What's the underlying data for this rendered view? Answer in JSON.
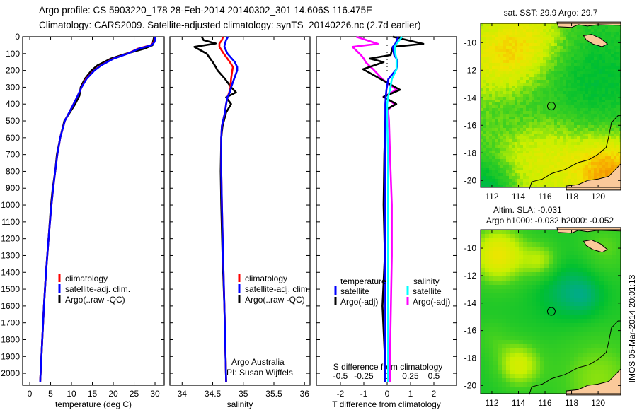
{
  "header": {
    "title_line1": "Argo profile: CS 5903220_178 28-Feb-2014 20140302_301 14.606S 116.475E",
    "title_line2": "Climatology: CARS2009. Satellite-adjusted climatology: synTS_20140226.nc (2.7d earlier)"
  },
  "footer": {
    "stamp": "IMOS 05-Mar-2014 20:01:13"
  },
  "chart_data": [
    {
      "type": "line",
      "xlabel": "temperature (deg C)",
      "xlim": [
        -1.7,
        32.2
      ],
      "ylim": [
        0,
        2071
      ],
      "y_inverted": true,
      "xticks": [
        0,
        5,
        10,
        15,
        20,
        25,
        30
      ],
      "xtick_labels": [
        "0",
        "5",
        "10",
        "15",
        "20",
        "25",
        "30"
      ],
      "yticks": [
        0,
        100,
        200,
        300,
        400,
        500,
        600,
        700,
        800,
        900,
        1000,
        1100,
        1200,
        1300,
        1400,
        1500,
        1600,
        1700,
        1800,
        1900,
        2000
      ],
      "ytick_labels": [
        "0",
        "100",
        "200",
        "300",
        "400",
        "500",
        "600",
        "700",
        "800",
        "900",
        "1000",
        "1100",
        "1200",
        "1300",
        "1400",
        "1500",
        "1600",
        "1700",
        "1800",
        "1900",
        "2000"
      ],
      "depth": [
        0,
        30,
        50,
        70,
        100,
        130,
        170,
        200,
        250,
        300,
        350,
        400,
        500,
        600,
        700,
        800,
        900,
        1000,
        1200,
        1400,
        1600,
        1800,
        2000,
        2050
      ],
      "series": [
        {
          "name": "climatology",
          "color": "#ff0000",
          "values": [
            29.9,
            29.8,
            29,
            26,
            23.4,
            20,
            17,
            15.4,
            13.5,
            12.4,
            11.5,
            10.5,
            8.4,
            7.3,
            6.6,
            6.1,
            5.6,
            5.2,
            4.5,
            3.9,
            3.4,
            3.0,
            2.6,
            2.5
          ]
        },
        {
          "name": "satellite-adj. clim.",
          "color": "#0000ff",
          "values": [
            30.1,
            29.9,
            29.2,
            26.2,
            23.5,
            20.1,
            17.1,
            15.5,
            13.6,
            12.4,
            11.5,
            10.5,
            8.4,
            7.3,
            6.6,
            6.1,
            5.6,
            5.2,
            4.5,
            3.9,
            3.4,
            3.0,
            2.6,
            2.5
          ]
        },
        {
          "name": "Argo(..raw -QC)",
          "color": "#000000",
          "values": [
            29.8,
            29.5,
            29.4,
            27.5,
            23.2,
            19.4,
            16.2,
            14.8,
            13.2,
            12.2,
            11.9,
            10.9,
            8.3,
            7.3,
            6.5,
            6.1,
            5.5,
            5.1,
            4.5,
            3.9,
            3.4,
            3.0,
            2.6,
            2.5
          ]
        }
      ],
      "draw_order": [
        2,
        0,
        1
      ]
    },
    {
      "type": "line",
      "xlabel": "salinity",
      "xlim": [
        33.8,
        36.09
      ],
      "ylim": [
        0,
        2071
      ],
      "y_inverted": true,
      "xticks": [
        34,
        34.5,
        35,
        35.5,
        36
      ],
      "xtick_labels": [
        "34",
        "34.5",
        "35",
        "35.5",
        "36"
      ],
      "depth": [
        0,
        20,
        40,
        60,
        100,
        150,
        180,
        200,
        250,
        300,
        330,
        360,
        400,
        450,
        530,
        600,
        800,
        1000,
        1300,
        1600,
        1900,
        2050
      ],
      "series": [
        {
          "name": "climatology",
          "color": "#ff0000",
          "values": [
            34.67,
            34.65,
            34.61,
            34.61,
            34.68,
            34.78,
            34.83,
            34.82,
            34.8,
            34.79,
            34.77,
            34.74,
            34.72,
            34.7,
            34.65,
            34.64,
            34.64,
            34.65,
            34.67,
            34.69,
            34.71,
            34.72
          ]
        },
        {
          "name": "satellite-adj. clim.",
          "color": "#0000ff",
          "values": [
            34.75,
            34.72,
            34.7,
            34.69,
            34.74,
            34.86,
            34.9,
            34.9,
            34.85,
            34.8,
            34.78,
            34.74,
            34.72,
            34.7,
            34.65,
            34.64,
            34.64,
            34.65,
            34.67,
            34.69,
            34.71,
            34.72
          ]
        },
        {
          "name": "Argo(..raw -QC)",
          "color": "#000000",
          "values": [
            34.32,
            34.35,
            34.55,
            34.2,
            34.4,
            34.5,
            34.55,
            34.58,
            34.7,
            34.8,
            34.88,
            34.72,
            34.8,
            34.72,
            34.66,
            34.64,
            34.63,
            34.64,
            34.66,
            34.69,
            34.71,
            34.72
          ]
        }
      ],
      "draw_order": [
        2,
        0,
        1
      ],
      "annotation": [
        "Argo Australia",
        "PI: Susan Wijffels"
      ]
    },
    {
      "type": "line",
      "xlabel": "T difference from climatology",
      "xlabel2": "S difference from climatology",
      "xlim": [
        -3.03,
        2.97
      ],
      "xlim2": [
        -0.7575,
        0.7425
      ],
      "ylim": [
        0,
        2071
      ],
      "y_inverted": true,
      "xticks": [
        -2,
        -1,
        0,
        1,
        2
      ],
      "xtick_labels": [
        "-2",
        "-1",
        "0",
        "1",
        "2"
      ],
      "xticks2": [
        -0.5,
        -0.25,
        0,
        0.25,
        0.5
      ],
      "xtick2_labels": [
        "-0.5",
        "-0.25",
        "0",
        "0.25",
        "0.5"
      ],
      "depth": [
        0,
        42,
        60,
        109,
        130,
        151,
        193,
        252,
        315,
        357,
        400,
        433,
        500,
        700,
        1000,
        1300,
        1600,
        1900,
        2050
      ],
      "legend_headers": [
        "temperature",
        "salinity"
      ],
      "series": [
        {
          "name": "satellite",
          "group": "temperature",
          "axis": "T",
          "color": "#0000ff",
          "values": [
            0.48,
            0.35,
            0.24,
            0.3,
            0.4,
            0.45,
            0.4,
            0.05,
            -0.03,
            -0.06,
            -0.08,
            -0.08,
            -0.08,
            -0.08,
            -0.08,
            -0.08,
            -0.08,
            -0.08,
            -0.08
          ]
        },
        {
          "name": "Argo(-adj)",
          "group": "temperature",
          "axis": "T",
          "color": "#000000",
          "values": [
            0.24,
            1.55,
            0.24,
            0.15,
            -0.75,
            -0.15,
            -1.03,
            -0.27,
            0.55,
            -0.15,
            0.39,
            -0.06,
            -0.08,
            -0.12,
            -0.15,
            -0.1,
            -0.2,
            -0.1,
            -0.1
          ]
        },
        {
          "name": "satellite",
          "group": "salinity",
          "axis": "S",
          "color": "#00ffff",
          "values": [
            0.16,
            0.1,
            0.08,
            0.09,
            0.1,
            0.1,
            0.1,
            0.05,
            0.03,
            0.01,
            0,
            0,
            0,
            0.01,
            0.01,
            0.01,
            0.01,
            0.01,
            0.01
          ]
        },
        {
          "name": "Argo(-adj)",
          "group": "salinity",
          "axis": "S",
          "color": "#ff00ff",
          "values": [
            -0.33,
            -0.1,
            -0.37,
            -0.28,
            -0.25,
            -0.23,
            -0.15,
            -0.05,
            0.1,
            -0.04,
            0.08,
            0.01,
            0.02,
            0.03,
            0.05,
            0.05,
            0.04,
            0.03,
            0.03
          ]
        }
      ],
      "draw_order": [
        3,
        1,
        0,
        2
      ]
    },
    {
      "type": "heatmap",
      "title": "sat. SST: 29.9  Argo: 29.7",
      "xlim": [
        111.15,
        121.7
      ],
      "ylim": [
        -20.5,
        -8.6
      ],
      "xticks": [
        112,
        114,
        116,
        118,
        120
      ],
      "xtick_labels": [
        "112",
        "114",
        "116",
        "118",
        "120"
      ],
      "yticks": [
        -10,
        -12,
        -14,
        -16,
        -18,
        -20
      ],
      "ytick_labels": [
        "-10",
        "-12",
        "-14",
        "-16",
        "-18",
        "-20"
      ],
      "argo_position": [
        116.475,
        -14.606
      ],
      "field": "sst"
    },
    {
      "type": "heatmap",
      "title": "Altim. SLA: -0.031",
      "subtitle": "Argo h1000: -0.032 h2000: -0.052",
      "xlim": [
        111.15,
        121.7
      ],
      "ylim": [
        -20.6,
        -8.66
      ],
      "xticks": [
        112,
        114,
        116,
        118,
        120
      ],
      "xtick_labels": [
        "112",
        "114",
        "116",
        "118",
        "120"
      ],
      "yticks": [
        -10,
        -12,
        -14,
        -16,
        -18,
        -20
      ],
      "ytick_labels": [
        "-10",
        "-12",
        "-14",
        "-16",
        "-18",
        "-20"
      ],
      "argo_position": [
        116.475,
        -14.606
      ],
      "field": "sla"
    }
  ],
  "geo": {
    "land_color": "#fac99a",
    "land": [
      [
        [
          118.9,
          -9.5
        ],
        [
          119.5,
          -9.4
        ],
        [
          120.2,
          -9.7
        ],
        [
          120.7,
          -10.1
        ],
        [
          120.3,
          -10.3
        ],
        [
          119.6,
          -10.1
        ],
        [
          119.1,
          -9.8
        ]
      ],
      [
        [
          116.9,
          -8.5
        ],
        [
          117.0,
          -8.85
        ],
        [
          118.0,
          -8.9
        ],
        [
          118.5,
          -8.7
        ],
        [
          119.2,
          -8.8
        ],
        [
          120.0,
          -8.7
        ],
        [
          121.7,
          -8.75
        ],
        [
          121.7,
          -8.5
        ]
      ],
      [
        [
          121.7,
          -18.8
        ],
        [
          121.3,
          -19.2
        ],
        [
          120.8,
          -19.7
        ],
        [
          120.0,
          -19.9
        ],
        [
          119.2,
          -20.0
        ],
        [
          118.5,
          -20.3
        ],
        [
          117.6,
          -20.4
        ],
        [
          117.6,
          -20.7
        ],
        [
          121.7,
          -20.7
        ]
      ]
    ],
    "contour": [
      [
        114.8,
        -20.7
      ],
      [
        115.0,
        -20.1
      ],
      [
        115.8,
        -19.9
      ],
      [
        116.5,
        -19.5
      ],
      [
        117.5,
        -19.2
      ],
      [
        118.5,
        -18.7
      ],
      [
        119.3,
        -18.5
      ],
      [
        120.0,
        -18.1
      ],
      [
        120.6,
        -17.6
      ],
      [
        120.8,
        -16.8
      ],
      [
        121.0,
        -15.8
      ],
      [
        121.5,
        -15.3
      ],
      [
        121.7,
        -15.3
      ]
    ]
  }
}
